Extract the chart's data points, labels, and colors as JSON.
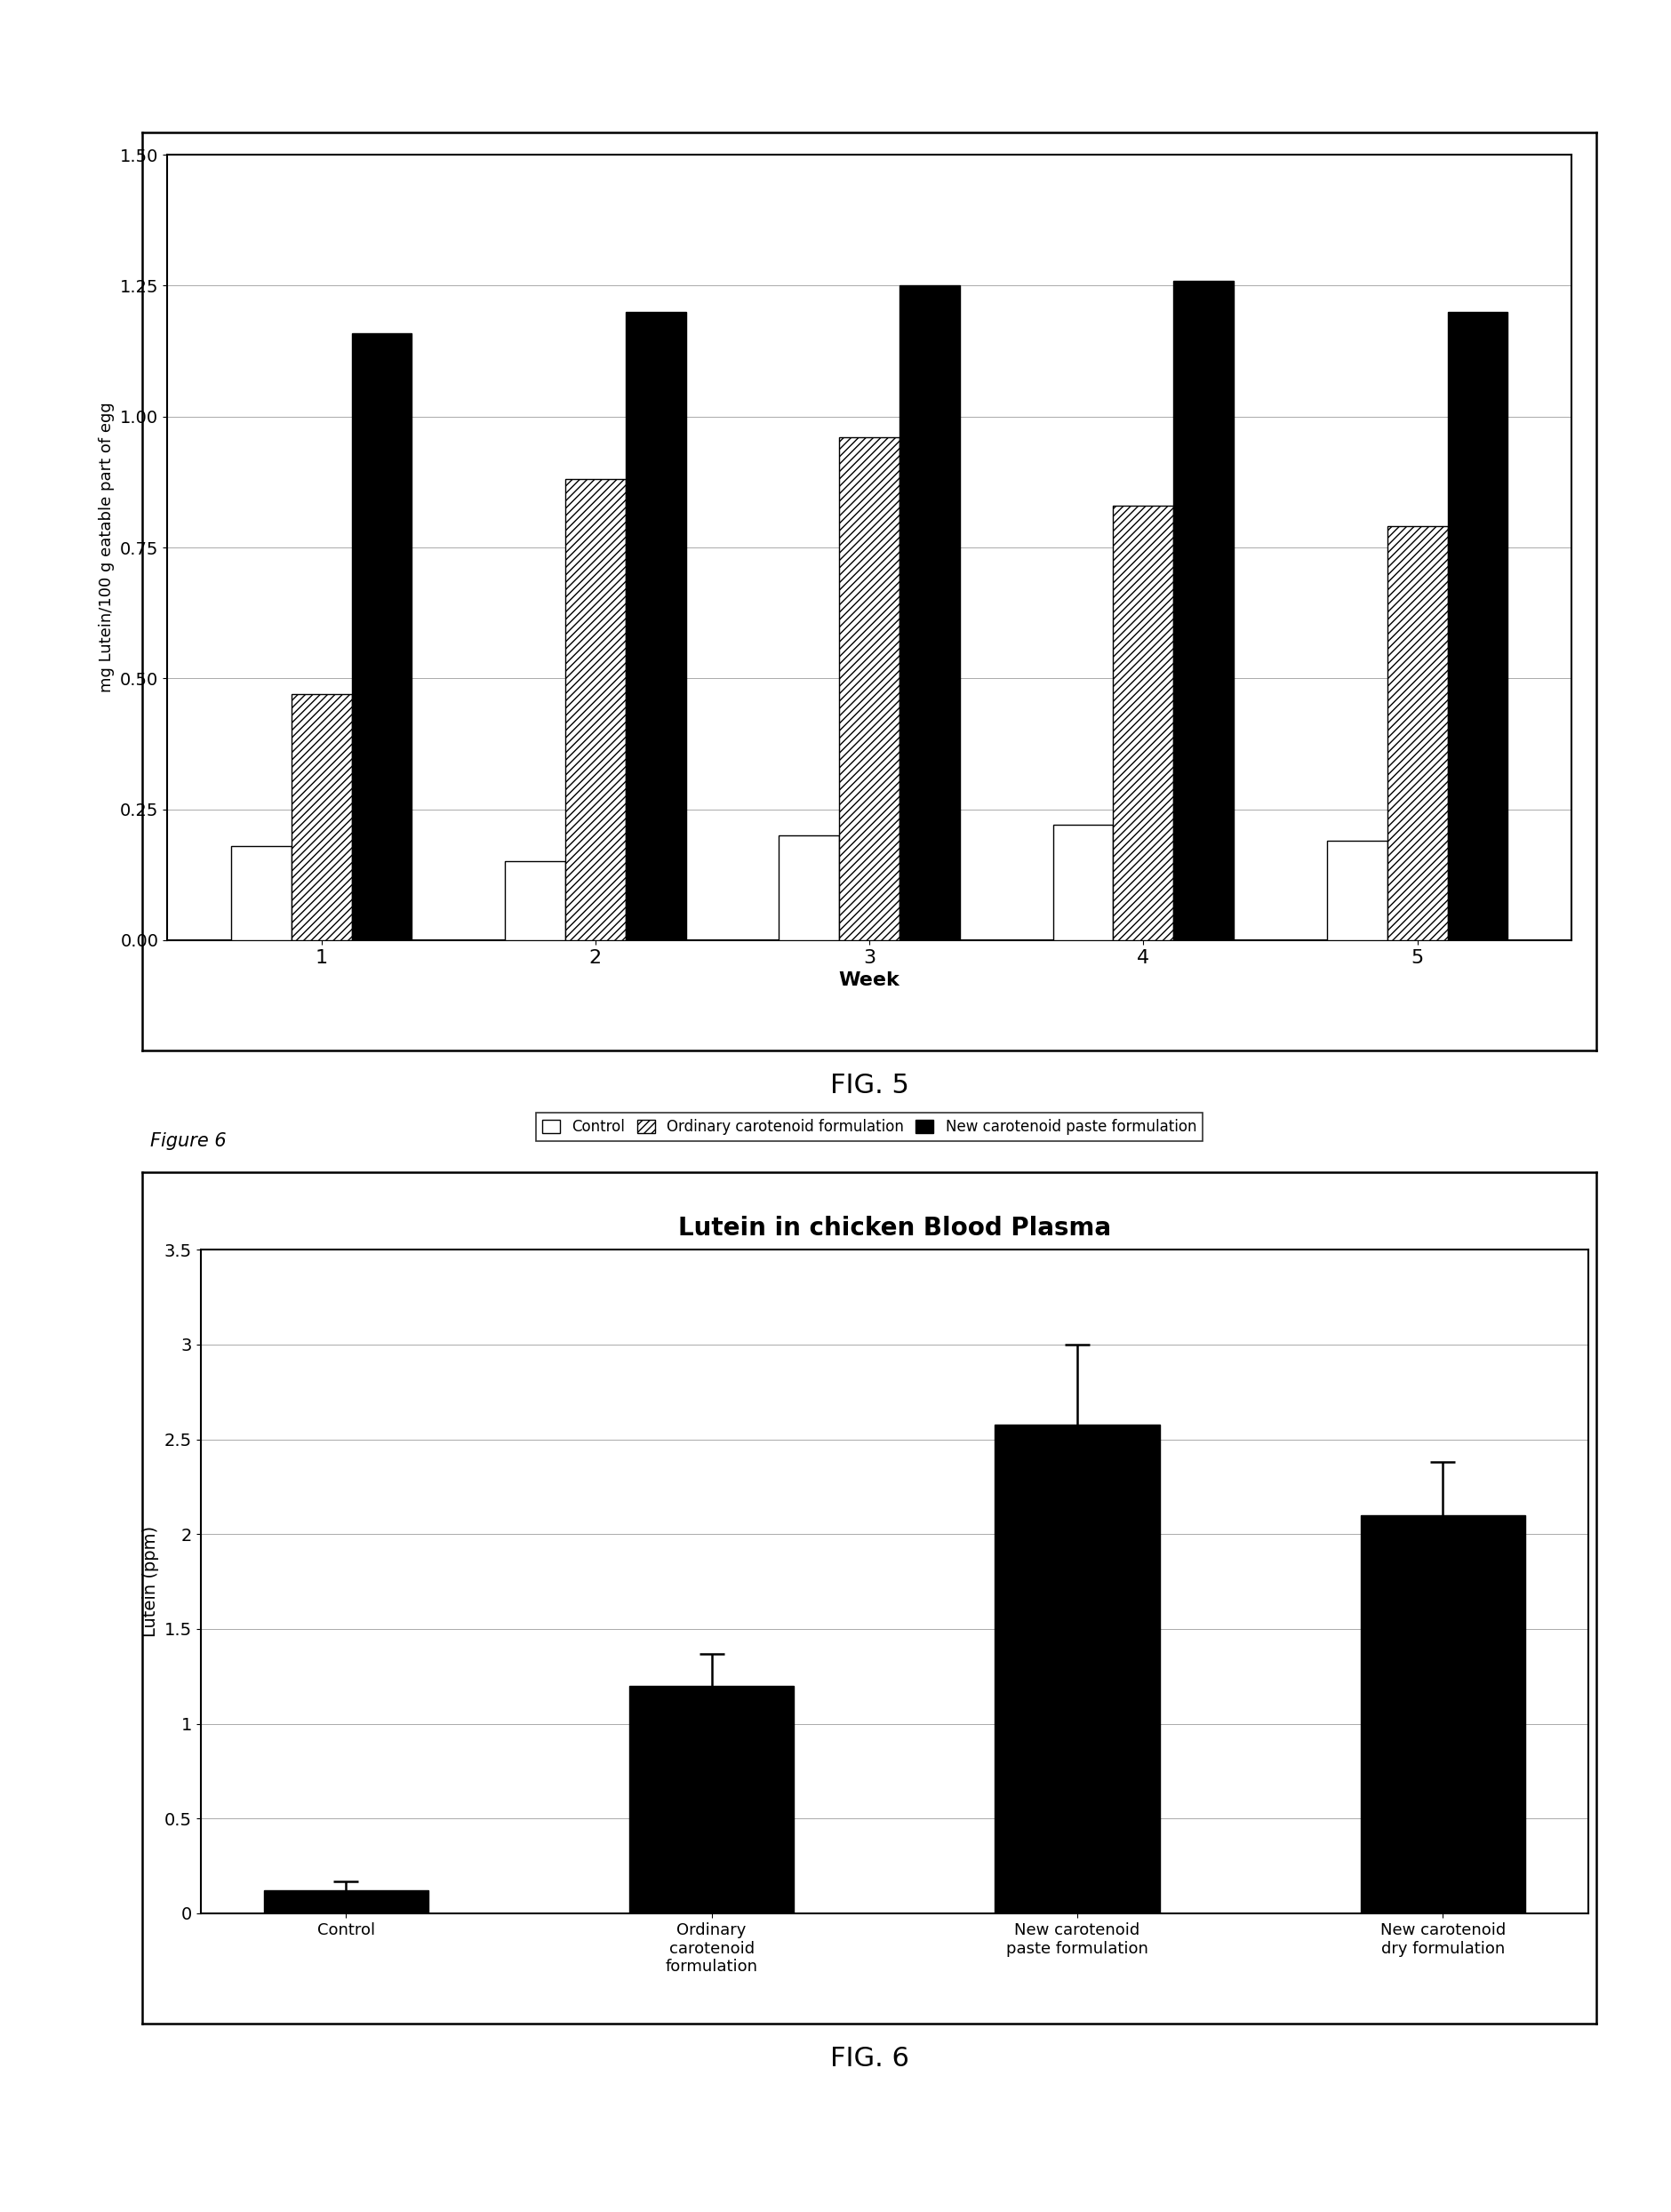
{
  "fig5": {
    "ylabel": "mg Lutein/100 g eatable part of egg",
    "xlabel": "Week",
    "weeks": [
      1,
      2,
      3,
      4,
      5
    ],
    "control": [
      0.18,
      0.15,
      0.2,
      0.22,
      0.19
    ],
    "ordinary": [
      0.47,
      0.88,
      0.96,
      0.83,
      0.79
    ],
    "new_paste": [
      1.16,
      1.2,
      1.25,
      1.26,
      1.2
    ],
    "ylim": [
      0.0,
      1.5
    ],
    "yticks": [
      0.0,
      0.25,
      0.5,
      0.75,
      1.0,
      1.25,
      1.5
    ],
    "legend_labels": [
      "Control",
      "Ordinary carotenoid formulation",
      "New carotenoid paste formulation"
    ]
  },
  "fig6": {
    "title": "Lutein in chicken Blood Plasma",
    "ylabel": "Lutein (ppm)",
    "categories": [
      "Control",
      "Ordinary\ncarotenoid\nformulation",
      "New carotenoid\npaste formulation",
      "New carotenoid\ndry formulation"
    ],
    "values": [
      0.12,
      1.2,
      2.58,
      2.1
    ],
    "errors": [
      0.05,
      0.17,
      0.42,
      0.28
    ],
    "ylim": [
      0,
      3.5
    ],
    "yticks": [
      0,
      0.5,
      1.0,
      1.5,
      2.0,
      2.5,
      3.0,
      3.5
    ]
  },
  "background_color": "#ffffff",
  "fig5_caption": "FIG. 5",
  "fig6_caption": "FIG. 6",
  "figure6_label": "Figure 6"
}
